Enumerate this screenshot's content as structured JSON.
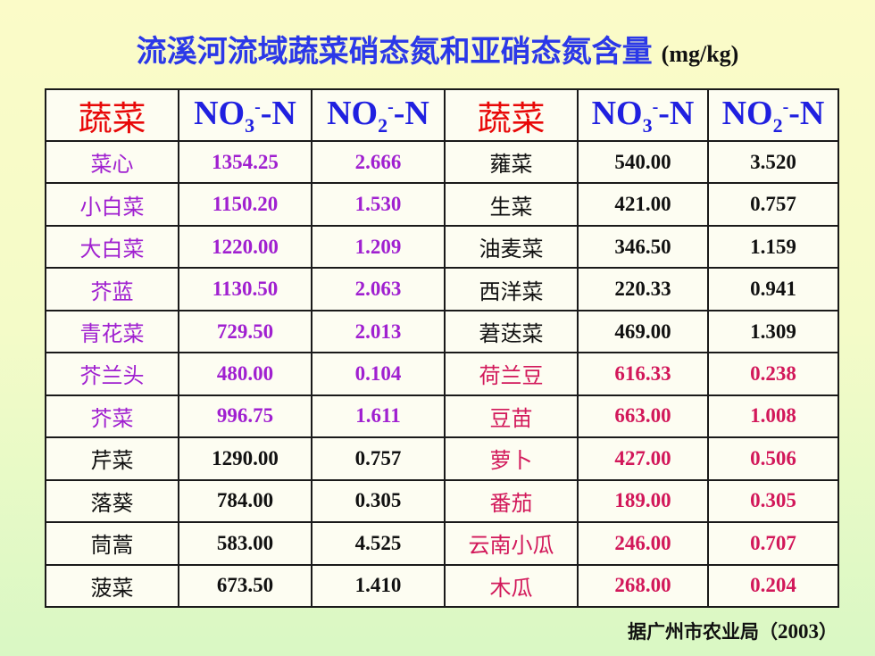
{
  "title": {
    "main": "流溪河流域蔬菜硝态氮和亚硝态氮含量",
    "unit": "(mg/kg)"
  },
  "headers": {
    "vegetable": "蔬菜",
    "no3_base": "NO",
    "no3_sub": "3",
    "no3_sup": "-",
    "no3_tail": "-N",
    "no2_base": "NO",
    "no2_sub": "2",
    "no2_sup": "-",
    "no2_tail": "-N"
  },
  "colors": {
    "title": "#2b38e8",
    "header_veg": "#e80808",
    "header_ion": "#2020e0",
    "purple": "#a020d0",
    "black": "#111111",
    "red": "#d2185a"
  },
  "rows": [
    {
      "left": {
        "veg": "菜心",
        "no3": "1354.25",
        "no2": "2.666",
        "color": "purple"
      },
      "right": {
        "veg": "蕹菜",
        "no3": "540.00",
        "no2": "3.520",
        "color": "black"
      }
    },
    {
      "left": {
        "veg": "小白菜",
        "no3": "1150.20",
        "no2": "1.530",
        "color": "purple"
      },
      "right": {
        "veg": "生菜",
        "no3": "421.00",
        "no2": "0.757",
        "color": "black"
      }
    },
    {
      "left": {
        "veg": "大白菜",
        "no3": "1220.00",
        "no2": "1.209",
        "color": "purple"
      },
      "right": {
        "veg": "油麦菜",
        "no3": "346.50",
        "no2": "1.159",
        "color": "black"
      }
    },
    {
      "left": {
        "veg": "芥蓝",
        "no3": "1130.50",
        "no2": "2.063",
        "color": "purple"
      },
      "right": {
        "veg": "西洋菜",
        "no3": "220.33",
        "no2": "0.941",
        "color": "black"
      }
    },
    {
      "left": {
        "veg": "青花菜",
        "no3": "729.50",
        "no2": "2.013",
        "color": "purple"
      },
      "right": {
        "veg": "莙荙菜",
        "no3": "469.00",
        "no2": "1.309",
        "color": "black"
      }
    },
    {
      "left": {
        "veg": "芥兰头",
        "no3": "480.00",
        "no2": "0.104",
        "color": "purple"
      },
      "right": {
        "veg": "荷兰豆",
        "no3": "616.33",
        "no2": "0.238",
        "color": "red"
      }
    },
    {
      "left": {
        "veg": "芥菜",
        "no3": "996.75",
        "no2": "1.611",
        "color": "purple"
      },
      "right": {
        "veg": "豆苗",
        "no3": "663.00",
        "no2": "1.008",
        "color": "red"
      }
    },
    {
      "left": {
        "veg": "芹菜",
        "no3": "1290.00",
        "no2": "0.757",
        "color": "black"
      },
      "right": {
        "veg": "萝卜",
        "no3": "427.00",
        "no2": "0.506",
        "color": "red"
      }
    },
    {
      "left": {
        "veg": "落葵",
        "no3": "784.00",
        "no2": "0.305",
        "color": "black"
      },
      "right": {
        "veg": "番茄",
        "no3": "189.00",
        "no2": "0.305",
        "color": "red"
      }
    },
    {
      "left": {
        "veg": "茼蒿",
        "no3": "583.00",
        "no2": "4.525",
        "color": "black"
      },
      "right": {
        "veg": "云南小瓜",
        "no3": "246.00",
        "no2": "0.707",
        "color": "red"
      }
    },
    {
      "left": {
        "veg": "菠菜",
        "no3": "673.50",
        "no2": "1.410",
        "color": "black"
      },
      "right": {
        "veg": "木瓜",
        "no3": "268.00",
        "no2": "0.204",
        "color": "red"
      }
    }
  ],
  "source": {
    "prefix": "据广州市农业局（",
    "year": "2003",
    "suffix": "）"
  }
}
